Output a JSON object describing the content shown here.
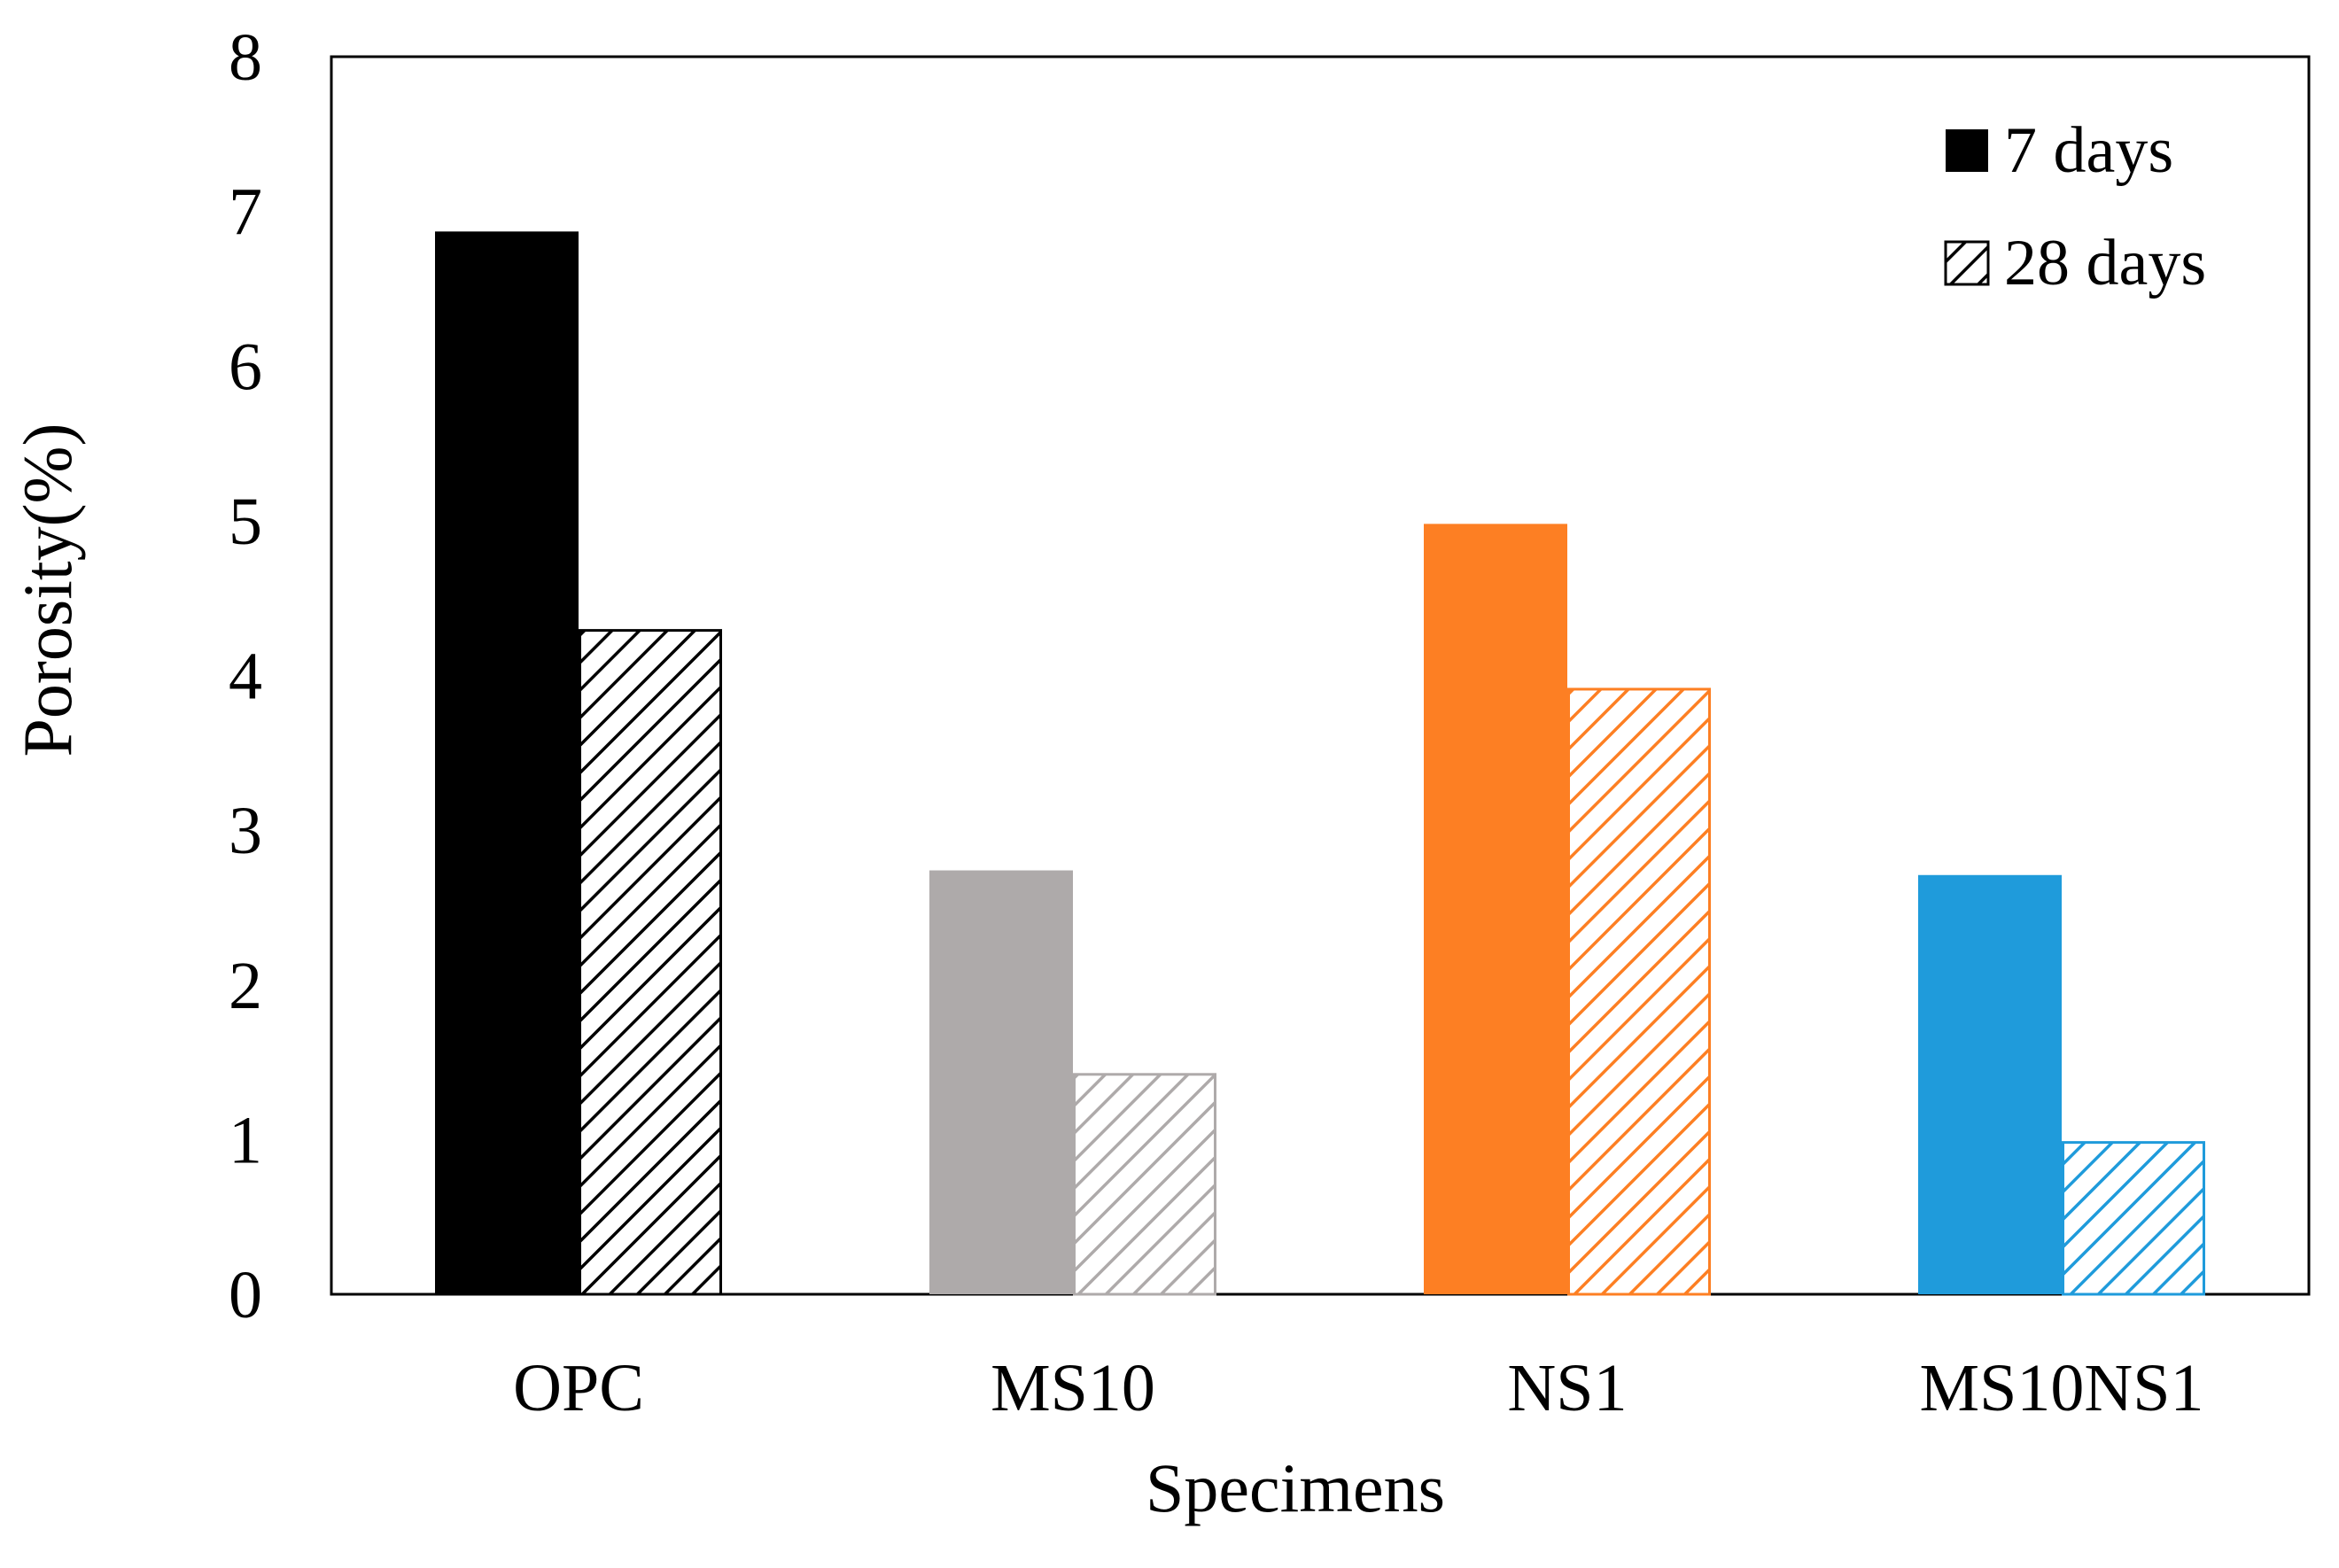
{
  "chart_data": {
    "type": "bar",
    "title": "",
    "xlabel": "Specimens",
    "ylabel": "Porosity(%)",
    "ylim": [
      0,
      8
    ],
    "yticks": [
      0,
      1,
      2,
      3,
      4,
      5,
      6,
      7,
      8
    ],
    "grid": false,
    "legend_position": "top-right",
    "categories": [
      "OPC",
      "MS10",
      "NS1",
      "MS10NS1"
    ],
    "category_colors": [
      "#000000",
      "#aeaaaa",
      "#fd7f23",
      "#1f9bdb"
    ],
    "series": [
      {
        "name": "7 days",
        "style": "solid",
        "values": [
          6.87,
          2.74,
          4.98,
          2.71
        ]
      },
      {
        "name": "28 days",
        "style": "hatched",
        "values": [
          4.3,
          1.43,
          3.92,
          0.99
        ]
      }
    ]
  }
}
